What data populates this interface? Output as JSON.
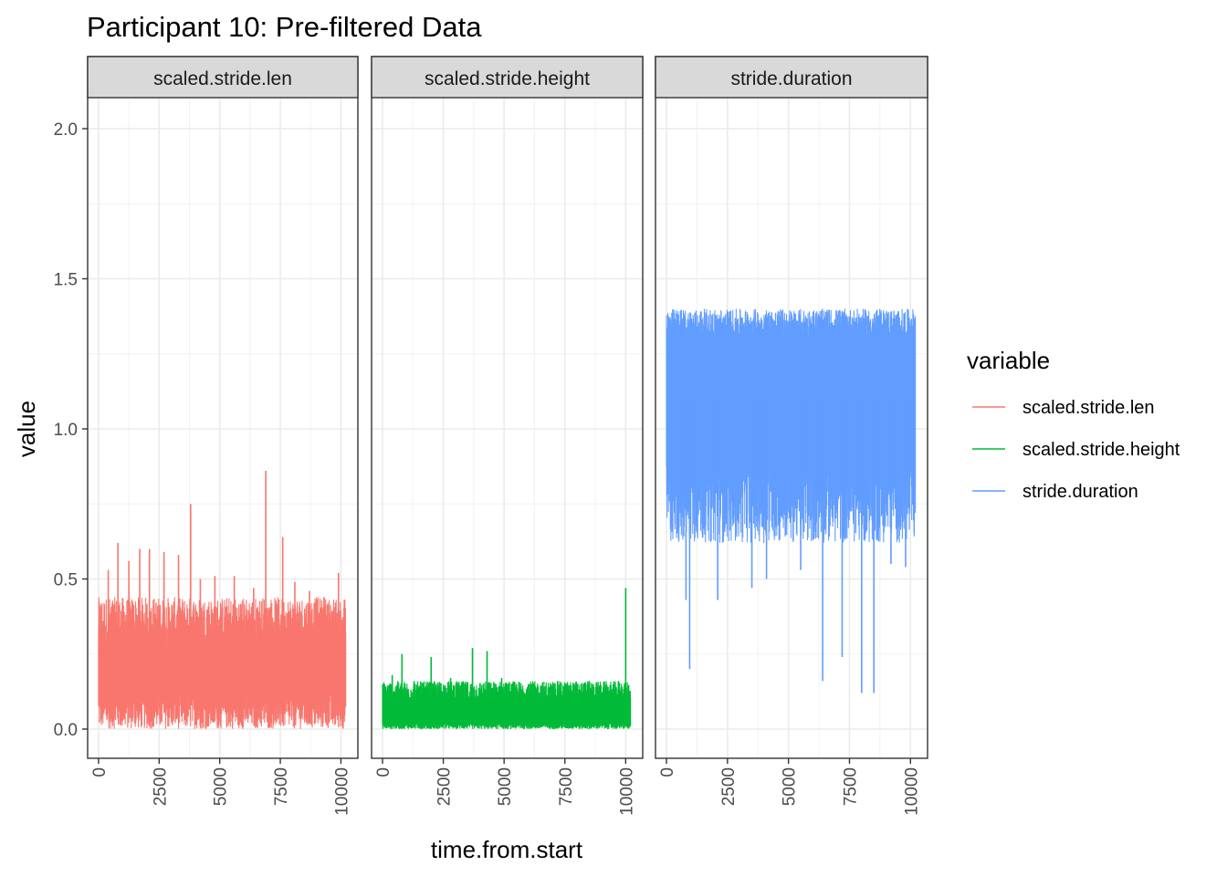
{
  "chart_data": {
    "type": "line",
    "title": "Participant 10: Pre-filtered Data",
    "xlabel": "time.from.start",
    "ylabel": "value",
    "ylim": [
      0,
      2.0
    ],
    "y_ticks": [
      "0.0",
      "0.5",
      "1.0",
      "1.5",
      "2.0"
    ],
    "y_tick_values": [
      0,
      0.5,
      1.0,
      1.5,
      2.0
    ],
    "xlim": [
      -450,
      10700
    ],
    "x_ticks": [
      "0",
      "2500",
      "5000",
      "7500",
      "10000"
    ],
    "x_tick_values": [
      0,
      2500,
      5000,
      7500,
      10000
    ],
    "grid": true,
    "legend": {
      "title": "variable",
      "position": "right",
      "entries": [
        "scaled.stride.len",
        "scaled.stride.height",
        "stride.duration"
      ]
    },
    "panels": [
      {
        "label": "scaled.stride.len",
        "series": "scaled.stride.len",
        "color": "#F8766D",
        "x_range": [
          0,
          10200
        ],
        "band_low": [
          0.0,
          0.12
        ],
        "band_high": [
          0.28,
          0.44
        ],
        "spikes": [
          {
            "x": 400,
            "value": 0.53
          },
          {
            "x": 800,
            "value": 0.62
          },
          {
            "x": 1250,
            "value": 0.56
          },
          {
            "x": 1700,
            "value": 0.6
          },
          {
            "x": 2100,
            "value": 0.6
          },
          {
            "x": 2700,
            "value": 0.59
          },
          {
            "x": 3300,
            "value": 0.58
          },
          {
            "x": 3800,
            "value": 0.75
          },
          {
            "x": 4200,
            "value": 0.5
          },
          {
            "x": 4800,
            "value": 0.51
          },
          {
            "x": 5600,
            "value": 0.51
          },
          {
            "x": 6400,
            "value": 0.47
          },
          {
            "x": 6900,
            "value": 0.86
          },
          {
            "x": 7600,
            "value": 0.64
          },
          {
            "x": 8100,
            "value": 0.49
          },
          {
            "x": 8700,
            "value": 0.46
          },
          {
            "x": 9300,
            "value": 0.44
          },
          {
            "x": 9900,
            "value": 0.52
          }
        ]
      },
      {
        "label": "scaled.stride.height",
        "series": "scaled.stride.height",
        "color": "#00BA38",
        "x_range": [
          0,
          10200
        ],
        "band_low": [
          0.0,
          0.02
        ],
        "band_high": [
          0.09,
          0.16
        ],
        "spikes": [
          {
            "x": 400,
            "value": 0.18
          },
          {
            "x": 800,
            "value": 0.25
          },
          {
            "x": 1300,
            "value": 0.16
          },
          {
            "x": 2000,
            "value": 0.24
          },
          {
            "x": 2800,
            "value": 0.17
          },
          {
            "x": 3700,
            "value": 0.27
          },
          {
            "x": 4300,
            "value": 0.26
          },
          {
            "x": 4900,
            "value": 0.17
          },
          {
            "x": 6000,
            "value": 0.15
          },
          {
            "x": 7200,
            "value": 0.16
          },
          {
            "x": 8500,
            "value": 0.16
          },
          {
            "x": 9700,
            "value": 0.16
          },
          {
            "x": 10000,
            "value": 0.47
          }
        ]
      },
      {
        "label": "stride.duration",
        "series": "stride.duration",
        "color": "#619CFF",
        "x_range": [
          0,
          10200
        ],
        "band_low": [
          0.62,
          0.9
        ],
        "band_high": [
          1.3,
          1.4
        ],
        "spikes": [
          {
            "x": 950,
            "value": 0.2
          },
          {
            "x": 800,
            "value": 0.43
          },
          {
            "x": 2100,
            "value": 0.43
          },
          {
            "x": 3500,
            "value": 0.47
          },
          {
            "x": 4100,
            "value": 0.5
          },
          {
            "x": 6400,
            "value": 0.16
          },
          {
            "x": 7200,
            "value": 0.24
          },
          {
            "x": 8000,
            "value": 0.12
          },
          {
            "x": 8500,
            "value": 0.12
          },
          {
            "x": 5500,
            "value": 0.53
          },
          {
            "x": 9200,
            "value": 0.55
          },
          {
            "x": 9800,
            "value": 0.54
          }
        ]
      }
    ]
  }
}
